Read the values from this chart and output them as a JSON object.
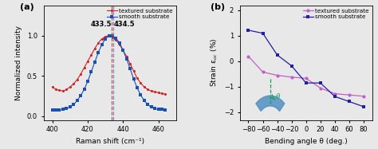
{
  "panel_a": {
    "title": "(a)",
    "xlabel": "Raman shift (cm⁻¹)",
    "ylabel": "Normalized intensity",
    "xlim": [
      395,
      470
    ],
    "ylim": [
      -0.05,
      1.38
    ],
    "xticks": [
      400,
      420,
      440,
      460
    ],
    "yticks": [
      0.0,
      0.5,
      1.0
    ],
    "vline_textured": 433.5,
    "vline_smooth": 434.5,
    "textured_color": "#d42020",
    "smooth_color": "#1a50b0",
    "textured_x": [
      400,
      402,
      404,
      406,
      408,
      410,
      412,
      414,
      416,
      418,
      420,
      422,
      424,
      426,
      428,
      430,
      432,
      434,
      436,
      438,
      440,
      442,
      444,
      446,
      448,
      450,
      452,
      454,
      456,
      458,
      460,
      462,
      464
    ],
    "textured_y": [
      0.36,
      0.33,
      0.32,
      0.31,
      0.33,
      0.36,
      0.4,
      0.45,
      0.52,
      0.6,
      0.68,
      0.76,
      0.84,
      0.91,
      0.96,
      0.99,
      1.0,
      0.98,
      0.95,
      0.89,
      0.82,
      0.74,
      0.65,
      0.56,
      0.47,
      0.41,
      0.36,
      0.33,
      0.31,
      0.3,
      0.29,
      0.28,
      0.27
    ],
    "smooth_x": [
      400,
      402,
      404,
      406,
      408,
      410,
      412,
      414,
      416,
      418,
      420,
      422,
      424,
      426,
      428,
      430,
      432,
      434,
      436,
      438,
      440,
      442,
      444,
      446,
      448,
      450,
      452,
      454,
      456,
      458,
      460,
      462,
      464
    ],
    "smooth_y": [
      0.07,
      0.07,
      0.07,
      0.08,
      0.09,
      0.11,
      0.14,
      0.19,
      0.25,
      0.33,
      0.43,
      0.55,
      0.67,
      0.79,
      0.89,
      0.96,
      1.0,
      1.0,
      0.97,
      0.91,
      0.82,
      0.71,
      0.59,
      0.46,
      0.35,
      0.26,
      0.19,
      0.14,
      0.11,
      0.09,
      0.08,
      0.08,
      0.07
    ],
    "bg_color": "#e8e8e8"
  },
  "panel_b": {
    "title": "(b)",
    "xlabel": "Bending angle θ (deg.)",
    "ylabel": "Strain ε$_{cc}$ (%)",
    "xlim": [
      -92,
      92
    ],
    "ylim": [
      -2.3,
      2.2
    ],
    "xticks": [
      -80,
      -60,
      -40,
      -20,
      0,
      20,
      40,
      60,
      80
    ],
    "yticks": [
      -2,
      -1,
      0,
      1,
      2
    ],
    "textured_color": "#c060c8",
    "smooth_color": "#2020a0",
    "textured_x": [
      -80,
      -60,
      -40,
      -20,
      0,
      20,
      40,
      60,
      80
    ],
    "textured_y": [
      0.2,
      -0.42,
      -0.55,
      -0.62,
      -0.67,
      -1.05,
      -1.27,
      -1.32,
      -1.37
    ],
    "smooth_x": [
      -80,
      -60,
      -40,
      -20,
      0,
      20,
      40,
      60,
      80
    ],
    "smooth_y": [
      1.22,
      1.1,
      0.25,
      -0.18,
      -0.85,
      -0.85,
      -1.38,
      -1.58,
      -1.78
    ],
    "bg_color": "#e8e8e8",
    "inset_beam_color": "#5090c0",
    "inset_arc_color": "#20a060"
  }
}
